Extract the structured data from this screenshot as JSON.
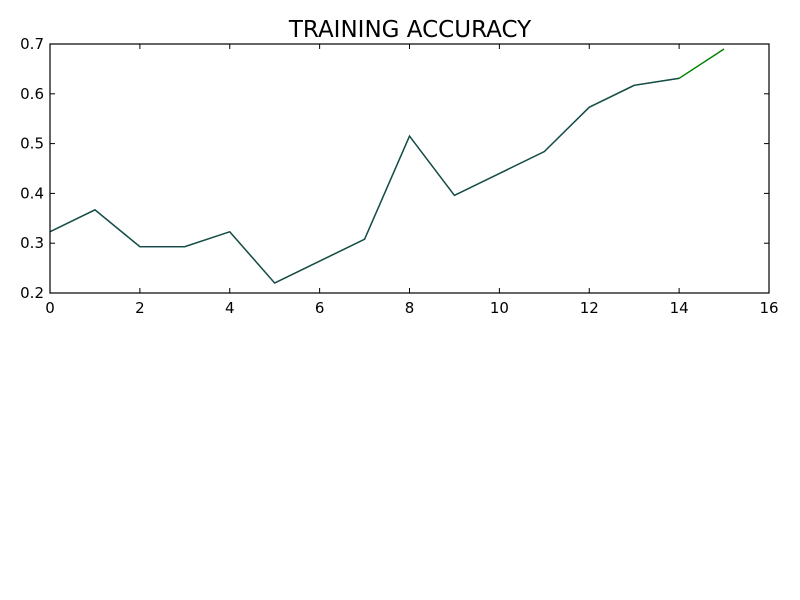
{
  "chart_data": {
    "type": "line",
    "title": "TRAINING ACCURACY",
    "xlabel": "",
    "ylabel": "",
    "xlim": [
      0,
      16
    ],
    "ylim": [
      0.2,
      0.7
    ],
    "x_ticks": [
      0,
      2,
      4,
      6,
      8,
      10,
      12,
      14,
      16
    ],
    "y_ticks": [
      0.2,
      0.3,
      0.4,
      0.5,
      0.6,
      0.7
    ],
    "grid": false,
    "legend": "none",
    "series": [
      {
        "color": "#008000",
        "x": [
          0,
          1,
          2,
          3,
          4,
          5,
          6,
          7,
          8,
          9,
          10,
          11,
          12,
          13,
          14,
          15
        ],
        "values": [
          0.323,
          0.367,
          0.293,
          0.293,
          0.323,
          0.22,
          0.264,
          0.308,
          0.515,
          0.396,
          0.44,
          0.484,
          0.573,
          0.617,
          0.631,
          0.69
        ]
      },
      {
        "color": "#1a4a50",
        "x": [
          0,
          1,
          2,
          3,
          4,
          5,
          6,
          7,
          8,
          9,
          10,
          11,
          12,
          13,
          14
        ],
        "values": [
          0.323,
          0.367,
          0.293,
          0.293,
          0.323,
          0.22,
          0.264,
          0.308,
          0.515,
          0.396,
          0.44,
          0.484,
          0.573,
          0.617,
          0.631
        ]
      }
    ]
  }
}
